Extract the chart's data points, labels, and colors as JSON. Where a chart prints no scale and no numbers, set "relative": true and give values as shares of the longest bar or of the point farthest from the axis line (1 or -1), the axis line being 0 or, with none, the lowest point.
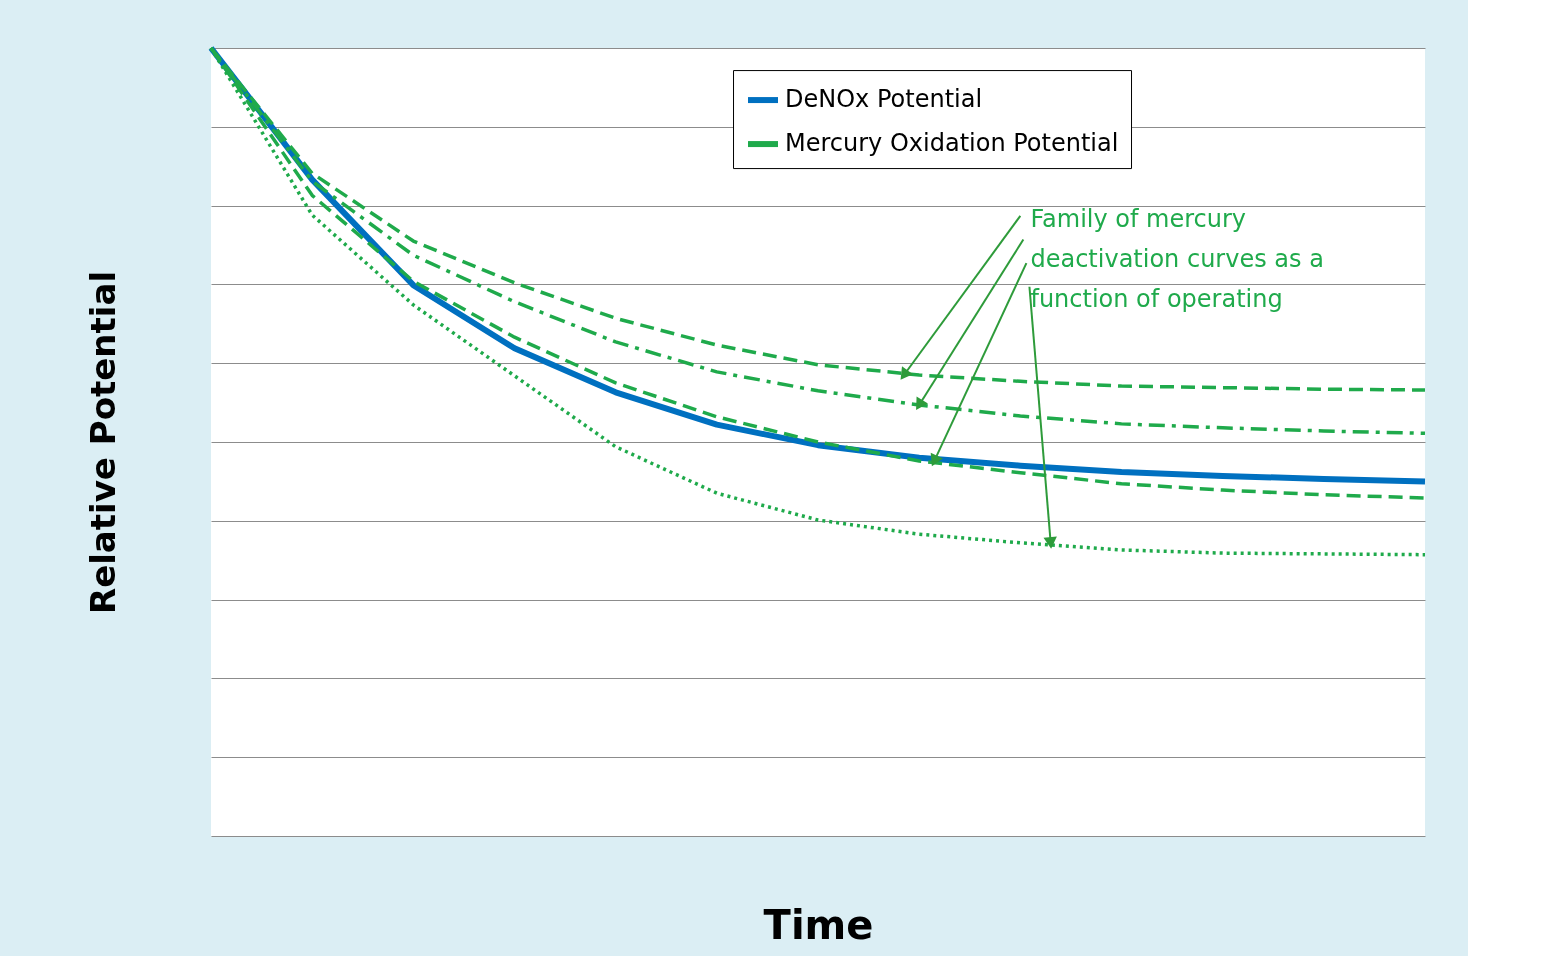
{
  "chart_data": {
    "type": "line",
    "relative": true,
    "xlabel": "Time",
    "ylabel": "Relative Potential",
    "grid": "y",
    "legend": "top right",
    "categories": [
      null,
      null,
      null,
      null,
      null,
      null,
      null,
      null,
      null,
      null,
      null,
      null,
      null
    ],
    "series": [
      {
        "name": "DeNOx Potential",
        "color": "#0070c0",
        "line_style": "solid",
        "values": [
          1.0,
          0.833,
          0.699,
          0.619,
          0.563,
          0.522,
          0.496,
          0.48,
          0.47,
          0.462,
          0.457,
          0.453,
          0.45
        ]
      },
      {
        "name": "Mercury Oxidation Potential",
        "color": "#1faa4b",
        "line_style": "dashed",
        "values": [
          1.0,
          0.841,
          0.755,
          0.702,
          0.657,
          0.623,
          0.598,
          0.585,
          0.577,
          0.571,
          0.569,
          0.567,
          0.566
        ]
      },
      {
        "color": "#1faa4b",
        "line_style": "dashdot",
        "values": [
          1.0,
          0.831,
          0.737,
          0.678,
          0.627,
          0.589,
          0.565,
          0.547,
          0.533,
          0.523,
          0.518,
          0.514,
          0.511
        ]
      },
      {
        "color": "#1faa4b",
        "line_style": "dashed",
        "values": [
          1.0,
          0.813,
          0.704,
          0.633,
          0.575,
          0.532,
          0.5,
          0.476,
          0.461,
          0.447,
          0.439,
          0.433,
          0.429
        ]
      },
      {
        "color": "#1faa4b",
        "line_style": "dotted",
        "values": [
          1.0,
          0.788,
          0.674,
          0.584,
          0.494,
          0.435,
          0.401,
          0.383,
          0.372,
          0.363,
          0.359,
          0.358,
          0.357
        ]
      }
    ],
    "annotations": [
      "Family of mercury deactivation curves as a function of operating"
    ]
  }
}
